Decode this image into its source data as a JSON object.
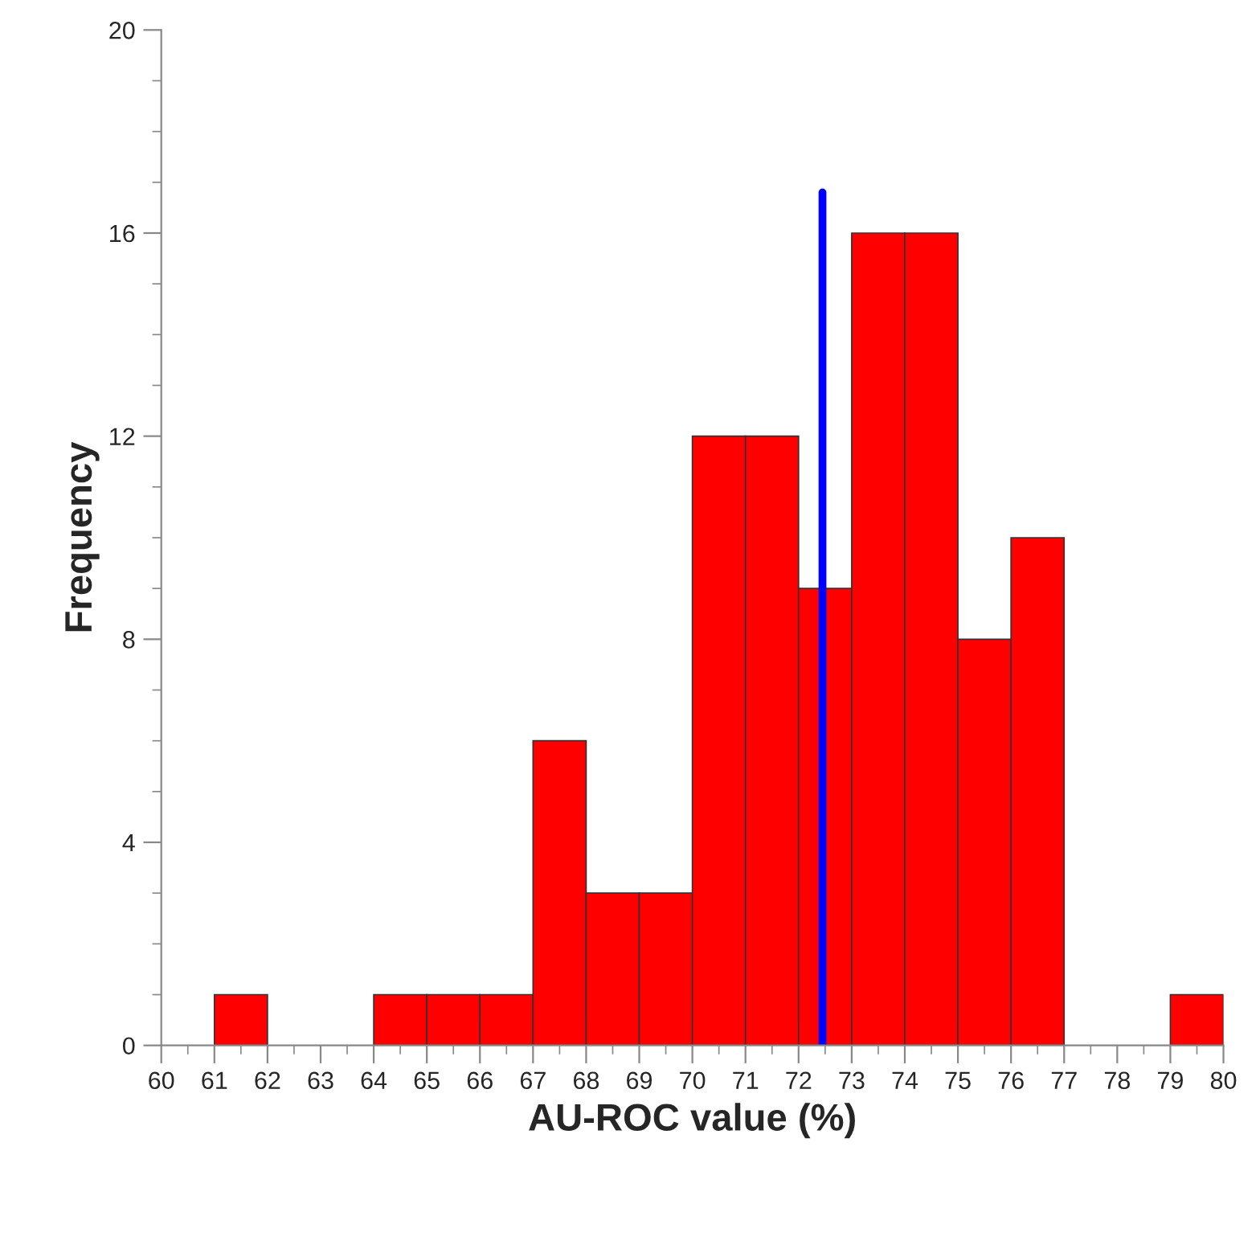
{
  "chart_data": {
    "type": "histogram",
    "xlabel": "AU-ROC value (%)",
    "ylabel": "Frequency",
    "bins": [
      60,
      61,
      62,
      63,
      64,
      65,
      66,
      67,
      68,
      69,
      70,
      71,
      72,
      73,
      74,
      75,
      76,
      77,
      78,
      79,
      80
    ],
    "values": [
      0,
      1,
      0,
      0,
      1,
      1,
      1,
      6,
      3,
      3,
      12,
      12,
      9,
      16,
      16,
      8,
      10,
      0,
      0,
      1
    ],
    "color": "#ff0000",
    "xlim": [
      60,
      80
    ],
    "xticks": [
      60,
      61,
      62,
      63,
      64,
      65,
      66,
      67,
      68,
      69,
      70,
      71,
      72,
      73,
      74,
      75,
      76,
      77,
      78,
      79,
      80
    ],
    "ylim": [
      0,
      20
    ],
    "yticks": [
      0,
      4,
      8,
      12,
      16,
      20
    ],
    "ref_lines": [
      {
        "axis": "x",
        "value": 72.45,
        "color": "#0000ff"
      }
    ],
    "grid": false,
    "legend": false
  }
}
